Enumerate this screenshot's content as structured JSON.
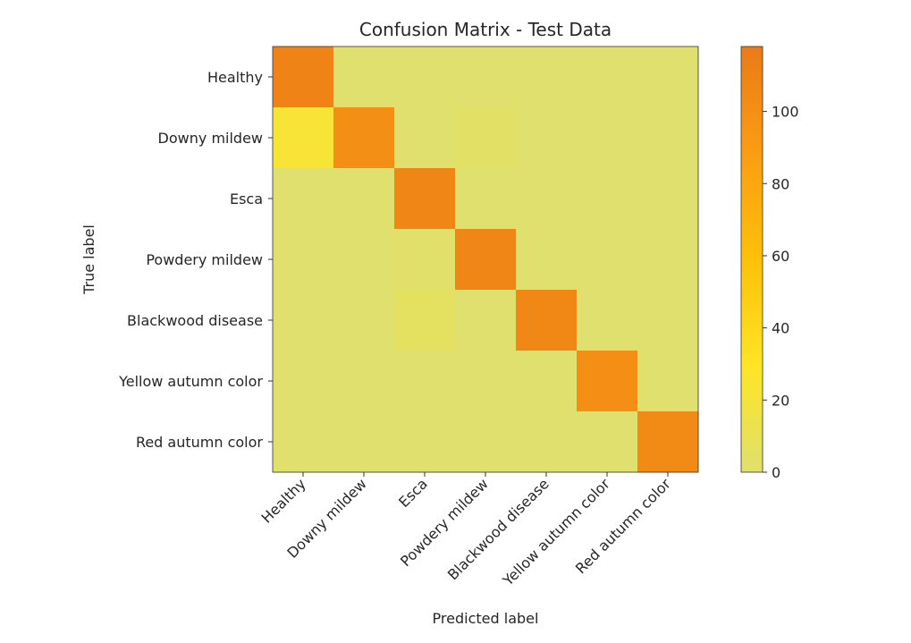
{
  "chart_data": {
    "type": "heatmap",
    "title": "Confusion Matrix - Test Data",
    "xlabel": "Predicted label",
    "ylabel": "True label",
    "labels": [
      "Healthy",
      "Downy mildew",
      "Esca",
      "Powdery mildew",
      "Blackwood disease",
      "Yellow autumn color",
      "Red autumn color"
    ],
    "matrix": [
      [
        110,
        0,
        0,
        0,
        0,
        0,
        0
      ],
      [
        22,
        100,
        0,
        3,
        0,
        0,
        0
      ],
      [
        0,
        0,
        108,
        0,
        0,
        0,
        0
      ],
      [
        0,
        0,
        1,
        108,
        0,
        0,
        0
      ],
      [
        0,
        0,
        5,
        0,
        106,
        0,
        0
      ],
      [
        0,
        0,
        0,
        0,
        0,
        101,
        0
      ],
      [
        0,
        0,
        0,
        0,
        0,
        0,
        104
      ]
    ],
    "colorbar": {
      "min": 0,
      "max": 118,
      "ticks": [
        0,
        20,
        40,
        60,
        80,
        100
      ]
    },
    "colormap": [
      "#dfe06e",
      "#ffe524",
      "#fec008",
      "#fb9d13",
      "#ea7a17"
    ]
  }
}
